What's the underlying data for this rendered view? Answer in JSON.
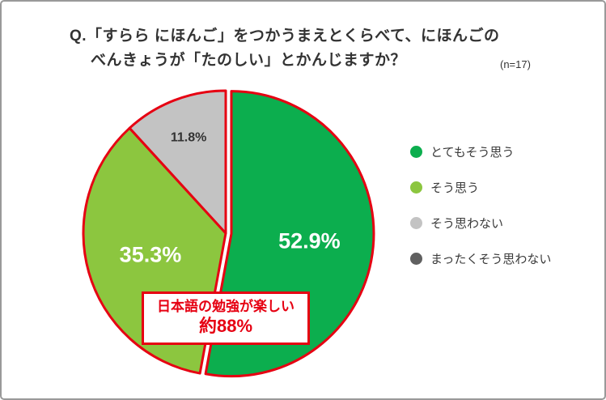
{
  "chart_data": {
    "type": "pie",
    "title_line1": "Q.「すらら にほんご」をつかうまえとくらべて、にほんごの",
    "title_line2": "べんきょうが「たのしい」とかんじますか？",
    "sample_size": "(n=17)",
    "start_angle_deg": 0,
    "direction": "clockwise",
    "outline_color": "#e60012",
    "legend_position": "right",
    "categories": [
      "とてもそう思う",
      "そう思う",
      "そう思わない",
      "まったくそう思わない"
    ],
    "values": [
      52.9,
      35.3,
      11.8,
      0
    ],
    "slices": [
      {
        "label": "とてもそう思う",
        "value": 52.9,
        "display": "52.9%",
        "color": "#0cae4e",
        "text_color": "#ffffff",
        "explode": 7
      },
      {
        "label": "そう思う",
        "value": 35.3,
        "display": "35.3%",
        "color": "#8cc63f",
        "text_color": "#ffffff",
        "explode": 0
      },
      {
        "label": "そう思わない",
        "value": 11.8,
        "display": "11.8%",
        "color": "#c3c3c3",
        "text_color": "#333333",
        "explode": 0
      },
      {
        "label": "まったくそう思わない",
        "value": 0,
        "display": "0%",
        "color": "#606060",
        "text_color": "#ffffff",
        "explode": 0
      }
    ],
    "annotation": {
      "line1": "日本語の勉強が楽しい",
      "line2": "約88%"
    }
  }
}
